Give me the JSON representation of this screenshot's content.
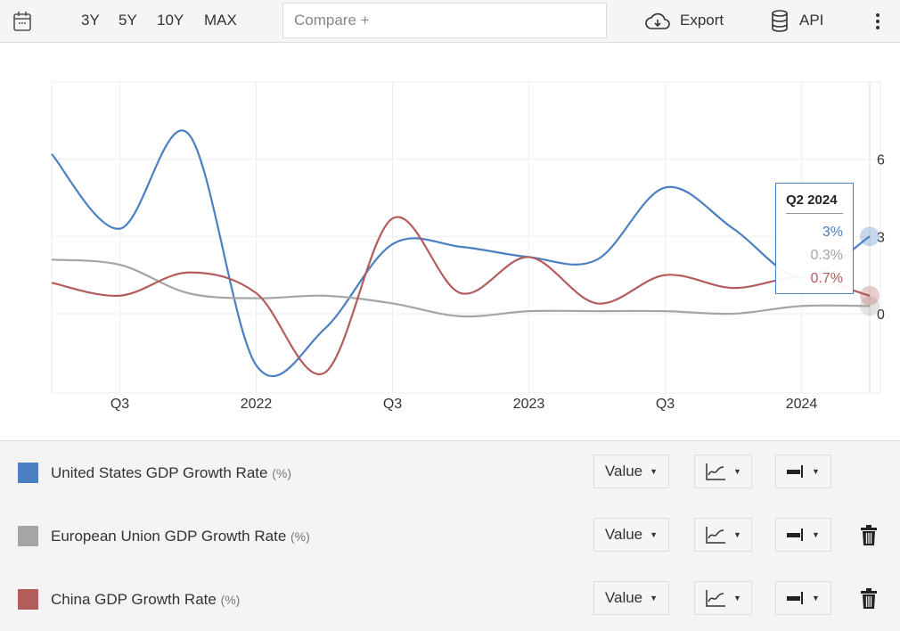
{
  "toolbar": {
    "ranges": [
      "3Y",
      "5Y",
      "10Y",
      "MAX"
    ],
    "compare_placeholder": "Compare +",
    "export_label": "Export",
    "api_label": "API"
  },
  "tooltip": {
    "title": "Q2 2024",
    "values": [
      "3%",
      "0.3%",
      "0.7%"
    ]
  },
  "legend": [
    {
      "name": "United States GDP Growth Rate",
      "unit": "(%)",
      "mode": "Value",
      "deletable": false
    },
    {
      "name": "European Union GDP Growth Rate",
      "unit": "(%)",
      "mode": "Value",
      "deletable": true
    },
    {
      "name": "China GDP Growth Rate",
      "unit": "(%)",
      "mode": "Value",
      "deletable": true
    }
  ],
  "chart_data": {
    "type": "line",
    "x": [
      "Q2 2021",
      "Q3 2021",
      "Q4 2021",
      "Q1 2022",
      "Q2 2022",
      "Q3 2022",
      "Q4 2022",
      "Q1 2023",
      "Q2 2023",
      "Q3 2023",
      "Q4 2023",
      "Q1 2024",
      "Q2 2024"
    ],
    "xtick_labels": [
      {
        "at": 1,
        "label": "Q3"
      },
      {
        "at": 3,
        "label": "2022"
      },
      {
        "at": 5,
        "label": "Q3"
      },
      {
        "at": 7,
        "label": "2023"
      },
      {
        "at": 9,
        "label": "Q3"
      },
      {
        "at": 11,
        "label": "2024"
      }
    ],
    "yticks": [
      0,
      3,
      6
    ],
    "ylim": [
      -3,
      9
    ],
    "y_axis_side": "right",
    "grid": true,
    "series": [
      {
        "name": "United States GDP Growth Rate",
        "color": "#4a7fc1",
        "values": [
          6.2,
          3.3,
          7.0,
          -2.0,
          -0.6,
          2.7,
          2.6,
          2.2,
          2.1,
          4.9,
          3.3,
          1.4,
          3.0
        ]
      },
      {
        "name": "European Union GDP Growth Rate",
        "color": "#a5a5a5",
        "values": [
          2.1,
          1.9,
          0.8,
          0.6,
          0.7,
          0.4,
          -0.1,
          0.1,
          0.1,
          0.1,
          0.0,
          0.3,
          0.3
        ]
      },
      {
        "name": "China GDP Growth Rate",
        "color": "#b35c5c",
        "values": [
          1.2,
          0.7,
          1.6,
          0.8,
          -2.3,
          3.7,
          0.8,
          2.2,
          0.4,
          1.5,
          1.0,
          1.4,
          0.7
        ]
      }
    ]
  }
}
